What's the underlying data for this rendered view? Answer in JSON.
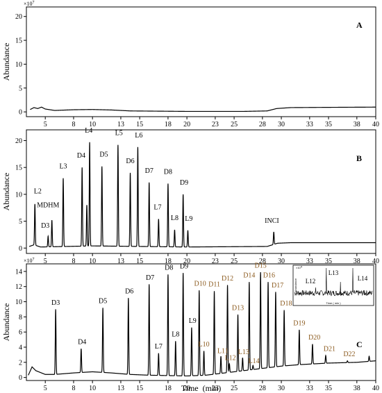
{
  "chart_data": [
    {
      "type": "line",
      "panel": "A",
      "ylabel": "Abundance",
      "y_multiplier": "×10",
      "y_multiplier_exp": "7",
      "xlim": [
        3,
        40
      ],
      "ylim": [
        -1,
        22
      ],
      "y_ticks": [
        0,
        5,
        10,
        15,
        20
      ],
      "x_ticks": [
        5,
        8,
        10,
        13,
        15,
        18,
        20,
        23,
        25,
        28,
        30,
        33,
        35,
        38,
        40
      ],
      "baseline": [
        [
          3.4,
          0.5
        ],
        [
          3.8,
          0.9
        ],
        [
          4.2,
          0.7
        ],
        [
          4.6,
          1.0
        ],
        [
          5.0,
          0.6
        ],
        [
          6,
          0.3
        ],
        [
          8,
          0.45
        ],
        [
          10,
          0.5
        ],
        [
          12,
          0.4
        ],
        [
          14,
          0.2
        ],
        [
          20,
          0.1
        ],
        [
          26,
          0.1
        ],
        [
          28.5,
          0.2
        ],
        [
          29.5,
          0.7
        ],
        [
          31,
          0.9
        ],
        [
          35,
          0.95
        ],
        [
          40,
          1.0
        ]
      ],
      "peaks": []
    },
    {
      "type": "line",
      "panel": "B",
      "ylabel": "Abundance",
      "xlim": [
        3,
        40
      ],
      "ylim": [
        -1,
        22
      ],
      "y_ticks": [
        0,
        5,
        10,
        15,
        20
      ],
      "x_ticks": [
        5,
        8,
        10,
        13,
        15,
        18,
        20,
        23,
        25,
        28,
        30,
        33,
        35,
        38,
        40
      ],
      "baseline": [
        [
          3.3,
          0.3
        ],
        [
          3.8,
          0.6
        ],
        [
          4.5,
          0.2
        ],
        [
          10,
          0.4
        ],
        [
          20,
          0.2
        ],
        [
          28.5,
          0.3
        ],
        [
          29.6,
          0.9
        ],
        [
          31,
          1.0
        ],
        [
          40,
          1.0
        ]
      ],
      "peaks": [
        {
          "label": "L2",
          "x": 3.9,
          "y": 8.2,
          "lx": 4.2,
          "ly": 10.2
        },
        {
          "label": "MDHM",
          "x": 5.7,
          "y": 5.2,
          "lx": 5.3,
          "ly": 7.6
        },
        {
          "label": "D3",
          "x": 5.3,
          "y": 2.2,
          "lx": 5.0,
          "ly": 3.8
        },
        {
          "label": "L3",
          "x": 6.9,
          "y": 13.0,
          "lx": 6.9,
          "ly": 14.8
        },
        {
          "label": "D4",
          "x": 8.9,
          "y": 15.0,
          "lx": 8.8,
          "ly": 16.8
        },
        {
          "label": "",
          "x": 9.4,
          "y": 8.0
        },
        {
          "label": "L4",
          "x": 9.7,
          "y": 19.7,
          "lx": 9.6,
          "ly": 21.5
        },
        {
          "label": "D5",
          "x": 11.0,
          "y": 15.2,
          "lx": 11.2,
          "ly": 17.0
        },
        {
          "label": "L5",
          "x": 12.7,
          "y": 19.2,
          "lx": 12.8,
          "ly": 21.0
        },
        {
          "label": "D6",
          "x": 14.0,
          "y": 14.0,
          "lx": 14.0,
          "ly": 15.8
        },
        {
          "label": "L6",
          "x": 14.8,
          "y": 18.8,
          "lx": 14.9,
          "ly": 20.6
        },
        {
          "label": "D7",
          "x": 16.0,
          "y": 12.2,
          "lx": 16.0,
          "ly": 14.0
        },
        {
          "label": "L7",
          "x": 17.0,
          "y": 5.4,
          "lx": 16.9,
          "ly": 7.2
        },
        {
          "label": "D8",
          "x": 18.0,
          "y": 12.0,
          "lx": 18.0,
          "ly": 13.8
        },
        {
          "label": "L8",
          "x": 18.7,
          "y": 3.4,
          "lx": 18.7,
          "ly": 5.2
        },
        {
          "label": "D9",
          "x": 19.6,
          "y": 10.0,
          "lx": 19.7,
          "ly": 11.8
        },
        {
          "label": "L9",
          "x": 20.1,
          "y": 3.3,
          "lx": 20.2,
          "ly": 5.1
        },
        {
          "label": "INCI",
          "x": 29.2,
          "y": 3.0,
          "lx": 29.0,
          "ly": 4.7
        }
      ]
    },
    {
      "type": "line",
      "panel": "C",
      "ylabel": "Abundance",
      "xlabel": "Time  (min)",
      "y_multiplier": "×10",
      "y_multiplier_exp": "7",
      "xlim": [
        3,
        40
      ],
      "ylim": [
        -0.4,
        15
      ],
      "y_ticks": [
        0,
        2,
        4,
        6,
        8,
        10,
        12,
        14
      ],
      "x_ticks": [
        5,
        8,
        10,
        13,
        15,
        18,
        20,
        23,
        25,
        28,
        30,
        33,
        35,
        38,
        40
      ],
      "baseline": [
        [
          3.2,
          0.3
        ],
        [
          3.6,
          1.4
        ],
        [
          4.0,
          0.9
        ],
        [
          5,
          0.4
        ],
        [
          6,
          0.4
        ],
        [
          8,
          0.6
        ],
        [
          10,
          0.75
        ],
        [
          12,
          0.6
        ],
        [
          14,
          0.4
        ],
        [
          16,
          0.3
        ],
        [
          18,
          0.25
        ],
        [
          20,
          0.2
        ],
        [
          22,
          0.3
        ],
        [
          24,
          0.6
        ],
        [
          26,
          0.9
        ],
        [
          28,
          1.2
        ],
        [
          30,
          1.5
        ],
        [
          32,
          1.7
        ],
        [
          35,
          1.9
        ],
        [
          38,
          2.0
        ],
        [
          40,
          2.2
        ]
      ],
      "peaks": [
        {
          "label": "D3",
          "x": 6.1,
          "y": 9.0,
          "lx": 6.1,
          "ly": 9.6,
          "color": "#000000"
        },
        {
          "label": "D4",
          "x": 8.8,
          "y": 3.8,
          "lx": 8.9,
          "ly": 4.4,
          "color": "#000000"
        },
        {
          "label": "D5",
          "x": 11.1,
          "y": 9.2,
          "lx": 11.1,
          "ly": 9.8,
          "color": "#000000"
        },
        {
          "label": "D6",
          "x": 13.8,
          "y": 10.5,
          "lx": 13.9,
          "ly": 11.1,
          "color": "#000000"
        },
        {
          "label": "D7",
          "x": 16.0,
          "y": 12.3,
          "lx": 16.1,
          "ly": 12.9,
          "color": "#000000"
        },
        {
          "label": "L7",
          "x": 17.0,
          "y": 3.2,
          "lx": 17.0,
          "ly": 3.8,
          "color": "#000000"
        },
        {
          "label": "D8",
          "x": 18.0,
          "y": 13.6,
          "lx": 18.1,
          "ly": 14.2,
          "color": "#000000"
        },
        {
          "label": "L8",
          "x": 18.8,
          "y": 4.8,
          "lx": 18.8,
          "ly": 5.4,
          "color": "#000000"
        },
        {
          "label": "D9",
          "x": 19.6,
          "y": 13.8,
          "lx": 19.7,
          "ly": 14.4,
          "color": "#000000"
        },
        {
          "label": "L9",
          "x": 20.5,
          "y": 6.6,
          "lx": 20.6,
          "ly": 7.2,
          "color": "#000000"
        },
        {
          "label": "D10",
          "x": 21.3,
          "y": 11.5,
          "lx": 21.4,
          "ly": 12.1,
          "color": "#8b5a1e"
        },
        {
          "label": "L10",
          "x": 21.8,
          "y": 3.5,
          "lx": 21.8,
          "ly": 4.1,
          "color": "#8b5a1e"
        },
        {
          "label": "D11",
          "x": 22.9,
          "y": 11.4,
          "lx": 22.9,
          "ly": 12.0,
          "color": "#8b5a1e"
        },
        {
          "label": "L11",
          "x": 23.6,
          "y": 2.8,
          "lx": 23.8,
          "ly": 3.2,
          "color": "#8b5a1e"
        },
        {
          "label": "D12",
          "x": 24.3,
          "y": 12.2,
          "lx": 24.3,
          "ly": 12.8,
          "color": "#8b5a1e"
        },
        {
          "label": "L12",
          "x": 24.5,
          "y": 1.8,
          "lx": 24.6,
          "ly": 2.3,
          "color": "#8b5a1e"
        },
        {
          "label": "D13",
          "x": 25.4,
          "y": 8.3,
          "lx": 25.4,
          "ly": 8.9,
          "color": "#8b5a1e"
        },
        {
          "label": "L13",
          "x": 25.9,
          "y": 2.6,
          "lx": 26.0,
          "ly": 3.1,
          "color": "#8b5a1e"
        },
        {
          "label": "L14",
          "x": 27.0,
          "y": 1.6,
          "lx": 27.1,
          "ly": 1.9,
          "color": "#8b5a1e"
        },
        {
          "label": "D14",
          "x": 26.6,
          "y": 12.6,
          "lx": 26.6,
          "ly": 13.2,
          "color": "#8b5a1e"
        },
        {
          "label": "D15",
          "x": 27.8,
          "y": 13.9,
          "lx": 27.8,
          "ly": 14.5,
          "color": "#8b5a1e"
        },
        {
          "label": "D16",
          "x": 28.6,
          "y": 12.6,
          "lx": 28.7,
          "ly": 13.2,
          "color": "#8b5a1e"
        },
        {
          "label": "D17",
          "x": 29.4,
          "y": 11.3,
          "lx": 29.6,
          "ly": 11.9,
          "color": "#8b5a1e"
        },
        {
          "label": "D18",
          "x": 30.3,
          "y": 8.9,
          "lx": 30.5,
          "ly": 9.5,
          "color": "#8b5a1e"
        },
        {
          "label": "D19",
          "x": 31.9,
          "y": 6.3,
          "lx": 31.9,
          "ly": 6.9,
          "color": "#8b5a1e"
        },
        {
          "label": "D20",
          "x": 33.3,
          "y": 4.4,
          "lx": 33.5,
          "ly": 5.0,
          "color": "#8b5a1e"
        },
        {
          "label": "D21",
          "x": 34.7,
          "y": 2.9,
          "lx": 35.1,
          "ly": 3.5,
          "color": "#8b5a1e"
        },
        {
          "label": "D22",
          "x": 37.0,
          "y": 2.2,
          "lx": 37.2,
          "ly": 2.8,
          "color": "#8b5a1e"
        },
        {
          "label": "",
          "x": 39.3,
          "y": 2.8
        }
      ],
      "inset": {
        "y_multiplier": "×10",
        "y_multiplier_exp": "4",
        "ylabel": "Abundance",
        "xlabel": "Time ( min )",
        "labels": [
          "L12",
          "L13",
          "L14"
        ]
      }
    }
  ]
}
